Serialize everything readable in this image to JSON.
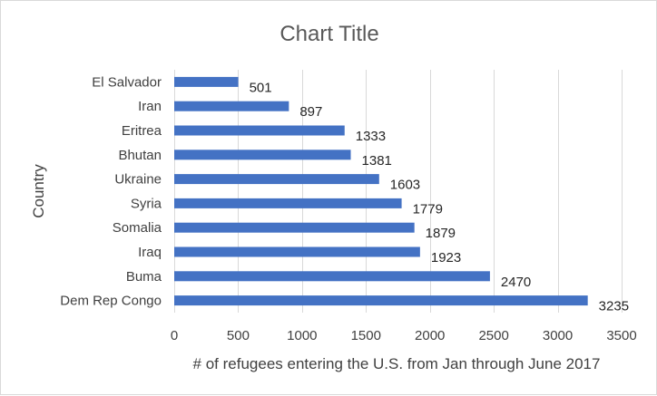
{
  "chart_data": {
    "type": "bar",
    "orientation": "horizontal",
    "title": "Chart Title",
    "xlabel": "# of refugees entering the U.S. from Jan through June 2017",
    "ylabel": "Country",
    "categories": [
      "El Salvador",
      "Iran",
      "Eritrea",
      "Bhutan",
      "Ukraine",
      "Syria",
      "Somalia",
      "Iraq",
      "Buma",
      "Dem Rep Congo"
    ],
    "values": [
      501,
      897,
      1333,
      1381,
      1603,
      1779,
      1879,
      1923,
      2470,
      3235
    ],
    "xlim": [
      0,
      3500
    ],
    "xticks": [
      0,
      500,
      1000,
      1500,
      2000,
      2500,
      3000,
      3500
    ],
    "grid": true,
    "bar_color": "#4472c4",
    "data_labels": true
  }
}
